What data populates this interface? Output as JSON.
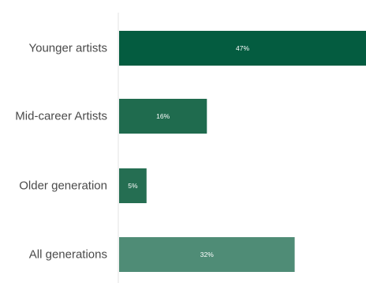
{
  "chart_data": {
    "type": "bar",
    "orientation": "horizontal",
    "categories": [
      "Younger artists",
      "Mid-career Artists",
      "Older generation",
      "All generations"
    ],
    "values": [
      47,
      16,
      5,
      32
    ],
    "value_labels": [
      "47%",
      "16%",
      "5%",
      "32%"
    ],
    "unit": "%",
    "xlim": [
      0,
      45
    ],
    "colors": [
      "#045c40",
      "#1f6b4e",
      "#256e52",
      "#4f8c76"
    ],
    "title": "",
    "xlabel": "",
    "ylabel": "",
    "grid": false,
    "legend": "none"
  }
}
